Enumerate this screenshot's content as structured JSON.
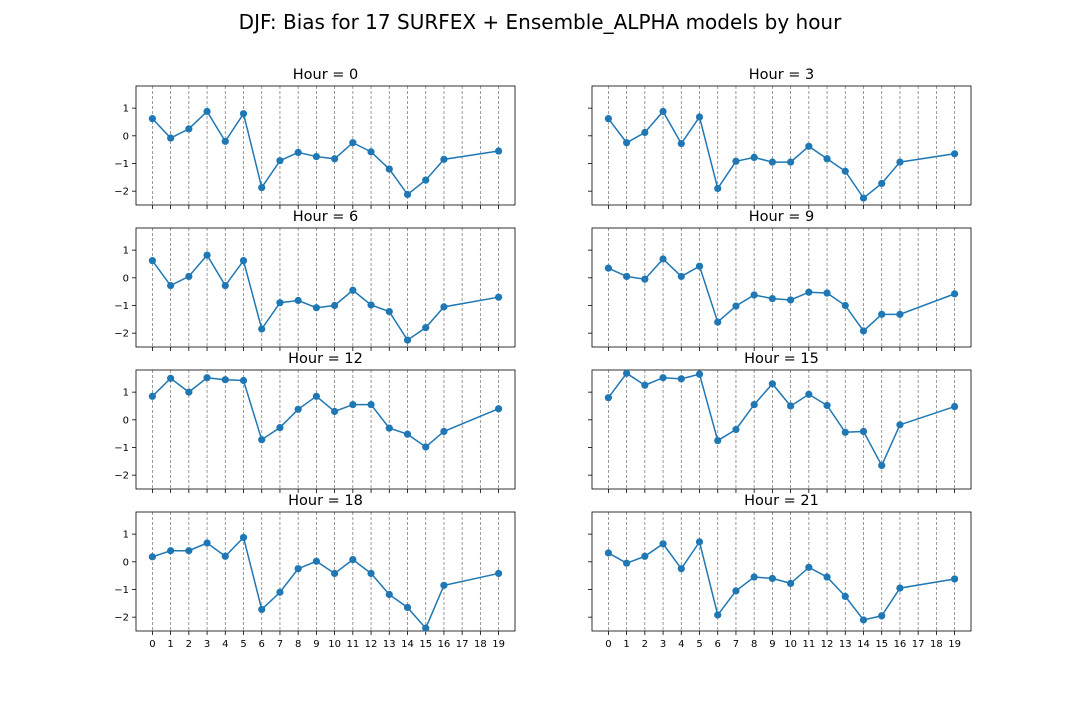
{
  "figure": {
    "title": "DJF: Bias for 17 SURFEX + Ensemble_ALPHA models by hour"
  },
  "chart_data": [
    {
      "type": "line",
      "title": "Hour = 0",
      "x": [
        0,
        1,
        2,
        3,
        4,
        5,
        6,
        7,
        8,
        9,
        10,
        11,
        12,
        13,
        14,
        15,
        16,
        19
      ],
      "series": [
        {
          "values": [
            0.62,
            -0.08,
            0.25,
            0.88,
            -0.2,
            0.8,
            -1.87,
            -0.9,
            -0.6,
            -0.75,
            -0.83,
            -0.25,
            -0.58,
            -1.2,
            -2.12,
            -1.6,
            -0.85,
            -0.55
          ]
        }
      ],
      "ylim": [
        -2.5,
        1.8
      ],
      "yticks": [
        -2,
        -1,
        0,
        1
      ],
      "xticks": [
        0,
        1,
        2,
        3,
        4,
        5,
        6,
        7,
        8,
        9,
        10,
        11,
        12,
        13,
        14,
        15,
        16,
        17,
        18,
        19
      ],
      "vlines": [
        0,
        1,
        2,
        3,
        4,
        5,
        6,
        7,
        8,
        9,
        10,
        11,
        12,
        13,
        14,
        15,
        16,
        17,
        18,
        19
      ],
      "color": "#1f77b4"
    },
    {
      "type": "line",
      "title": "Hour = 3",
      "x": [
        0,
        1,
        2,
        3,
        4,
        5,
        6,
        7,
        8,
        9,
        10,
        11,
        12,
        13,
        14,
        15,
        16,
        19
      ],
      "series": [
        {
          "values": [
            0.62,
            -0.25,
            0.12,
            0.88,
            -0.28,
            0.68,
            -1.9,
            -0.92,
            -0.78,
            -0.95,
            -0.95,
            -0.38,
            -0.83,
            -1.28,
            -2.25,
            -1.72,
            -0.95,
            -0.65
          ]
        }
      ],
      "ylim": [
        -2.5,
        1.8
      ],
      "yticks": [
        -2,
        -1,
        0,
        1
      ],
      "xticks": [
        0,
        1,
        2,
        3,
        4,
        5,
        6,
        7,
        8,
        9,
        10,
        11,
        12,
        13,
        14,
        15,
        16,
        17,
        18,
        19
      ],
      "vlines": [
        0,
        1,
        2,
        3,
        4,
        5,
        6,
        7,
        8,
        9,
        10,
        11,
        12,
        13,
        14,
        15,
        16,
        17,
        18,
        19
      ],
      "color": "#1f77b4"
    },
    {
      "type": "line",
      "title": "Hour = 6",
      "x": [
        0,
        1,
        2,
        3,
        4,
        5,
        6,
        7,
        8,
        9,
        10,
        11,
        12,
        13,
        14,
        15,
        16,
        19
      ],
      "series": [
        {
          "values": [
            0.62,
            -0.28,
            0.05,
            0.82,
            -0.28,
            0.62,
            -1.85,
            -0.9,
            -0.82,
            -1.08,
            -1.0,
            -0.45,
            -0.98,
            -1.22,
            -2.25,
            -1.8,
            -1.05,
            -0.7
          ]
        }
      ],
      "ylim": [
        -2.5,
        1.8
      ],
      "yticks": [
        -2,
        -1,
        0,
        1
      ],
      "xticks": [
        0,
        1,
        2,
        3,
        4,
        5,
        6,
        7,
        8,
        9,
        10,
        11,
        12,
        13,
        14,
        15,
        16,
        17,
        18,
        19
      ],
      "vlines": [
        0,
        1,
        2,
        3,
        4,
        5,
        6,
        7,
        8,
        9,
        10,
        11,
        12,
        13,
        14,
        15,
        16,
        17,
        18,
        19
      ],
      "color": "#1f77b4"
    },
    {
      "type": "line",
      "title": "Hour = 9",
      "x": [
        0,
        1,
        2,
        3,
        4,
        5,
        6,
        7,
        8,
        9,
        10,
        11,
        12,
        13,
        14,
        15,
        16,
        19
      ],
      "series": [
        {
          "values": [
            0.35,
            0.05,
            -0.05,
            0.68,
            0.05,
            0.42,
            -1.6,
            -1.02,
            -0.62,
            -0.75,
            -0.8,
            -0.52,
            -0.55,
            -1.0,
            -1.92,
            -1.32,
            -1.32,
            -0.58
          ]
        }
      ],
      "ylim": [
        -2.5,
        1.8
      ],
      "yticks": [
        -2,
        -1,
        0,
        1
      ],
      "xticks": [
        0,
        1,
        2,
        3,
        4,
        5,
        6,
        7,
        8,
        9,
        10,
        11,
        12,
        13,
        14,
        15,
        16,
        17,
        18,
        19
      ],
      "vlines": [
        0,
        1,
        2,
        3,
        4,
        5,
        6,
        7,
        8,
        9,
        10,
        11,
        12,
        13,
        14,
        15,
        16,
        17,
        18,
        19
      ],
      "color": "#1f77b4"
    },
    {
      "type": "line",
      "title": "Hour = 12",
      "x": [
        0,
        1,
        2,
        3,
        4,
        5,
        6,
        7,
        8,
        9,
        10,
        11,
        12,
        13,
        14,
        15,
        16,
        19
      ],
      "series": [
        {
          "values": [
            0.85,
            1.5,
            1.0,
            1.52,
            1.45,
            1.42,
            -0.72,
            -0.28,
            0.38,
            0.85,
            0.3,
            0.55,
            0.55,
            -0.3,
            -0.52,
            -0.98,
            -0.42,
            0.4
          ]
        }
      ],
      "ylim": [
        -2.5,
        1.8
      ],
      "yticks": [
        -2,
        -1,
        0,
        1
      ],
      "xticks": [
        0,
        1,
        2,
        3,
        4,
        5,
        6,
        7,
        8,
        9,
        10,
        11,
        12,
        13,
        14,
        15,
        16,
        17,
        18,
        19
      ],
      "vlines": [
        0,
        1,
        2,
        3,
        4,
        5,
        6,
        7,
        8,
        9,
        10,
        11,
        12,
        13,
        14,
        15,
        16,
        17,
        18,
        19
      ],
      "color": "#1f77b4"
    },
    {
      "type": "line",
      "title": "Hour = 15",
      "x": [
        0,
        1,
        2,
        3,
        4,
        5,
        6,
        7,
        8,
        9,
        10,
        11,
        12,
        13,
        14,
        15,
        16,
        19
      ],
      "series": [
        {
          "values": [
            0.8,
            1.68,
            1.25,
            1.52,
            1.48,
            1.65,
            -0.75,
            -0.35,
            0.55,
            1.3,
            0.5,
            0.92,
            0.52,
            -0.45,
            -0.42,
            -1.65,
            -0.18,
            0.48
          ]
        }
      ],
      "ylim": [
        -2.5,
        1.8
      ],
      "yticks": [
        -2,
        -1,
        0,
        1
      ],
      "xticks": [
        0,
        1,
        2,
        3,
        4,
        5,
        6,
        7,
        8,
        9,
        10,
        11,
        12,
        13,
        14,
        15,
        16,
        17,
        18,
        19
      ],
      "vlines": [
        0,
        1,
        2,
        3,
        4,
        5,
        6,
        7,
        8,
        9,
        10,
        11,
        12,
        13,
        14,
        15,
        16,
        17,
        18,
        19
      ],
      "color": "#1f77b4"
    },
    {
      "type": "line",
      "title": "Hour = 18",
      "x": [
        0,
        1,
        2,
        3,
        4,
        5,
        6,
        7,
        8,
        9,
        10,
        11,
        12,
        13,
        14,
        15,
        16,
        19
      ],
      "series": [
        {
          "values": [
            0.18,
            0.4,
            0.4,
            0.68,
            0.2,
            0.88,
            -1.72,
            -1.1,
            -0.25,
            0.02,
            -0.42,
            0.08,
            -0.42,
            -1.18,
            -1.65,
            -2.4,
            -0.85,
            -0.42
          ]
        }
      ],
      "ylim": [
        -2.5,
        1.8
      ],
      "yticks": [
        -2,
        -1,
        0,
        1
      ],
      "xticks": [
        0,
        1,
        2,
        3,
        4,
        5,
        6,
        7,
        8,
        9,
        10,
        11,
        12,
        13,
        14,
        15,
        16,
        17,
        18,
        19
      ],
      "vlines": [
        0,
        1,
        2,
        3,
        4,
        5,
        6,
        7,
        8,
        9,
        10,
        11,
        12,
        13,
        14,
        15,
        16,
        17,
        18,
        19
      ],
      "color": "#1f77b4"
    },
    {
      "type": "line",
      "title": "Hour = 21",
      "x": [
        0,
        1,
        2,
        3,
        4,
        5,
        6,
        7,
        8,
        9,
        10,
        11,
        12,
        13,
        14,
        15,
        16,
        19
      ],
      "series": [
        {
          "values": [
            0.32,
            -0.05,
            0.2,
            0.65,
            -0.25,
            0.72,
            -1.92,
            -1.05,
            -0.55,
            -0.6,
            -0.78,
            -0.2,
            -0.55,
            -1.25,
            -2.1,
            -1.95,
            -0.95,
            -0.62
          ]
        }
      ],
      "ylim": [
        -2.5,
        1.8
      ],
      "yticks": [
        -2,
        -1,
        0,
        1
      ],
      "xticks": [
        0,
        1,
        2,
        3,
        4,
        5,
        6,
        7,
        8,
        9,
        10,
        11,
        12,
        13,
        14,
        15,
        16,
        17,
        18,
        19
      ],
      "vlines": [
        0,
        1,
        2,
        3,
        4,
        5,
        6,
        7,
        8,
        9,
        10,
        11,
        12,
        13,
        14,
        15,
        16,
        17,
        18,
        19
      ],
      "color": "#1f77b4"
    }
  ]
}
